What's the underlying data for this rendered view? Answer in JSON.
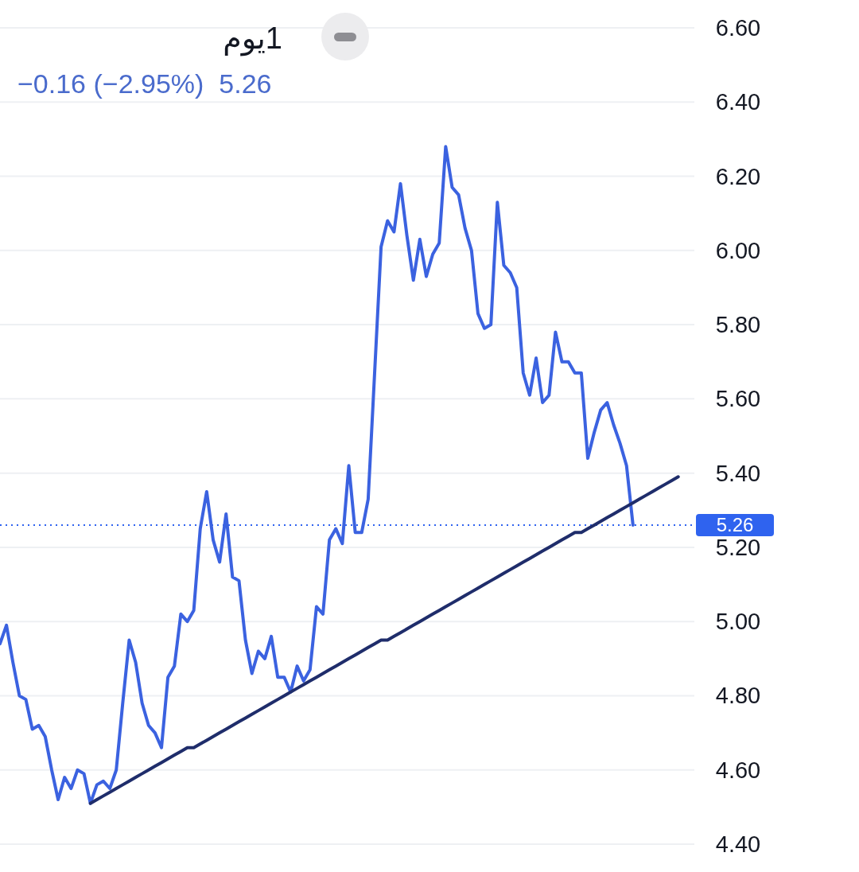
{
  "chart_data": {
    "type": "line",
    "title": "1يوم",
    "subtitle": "−0.16 (−2.95%)  5.26",
    "categories": [
      null,
      null,
      null,
      null,
      null,
      null,
      null,
      null,
      null,
      null,
      null,
      null,
      null,
      null,
      null,
      null,
      null,
      null,
      null,
      null,
      null,
      null,
      null,
      null,
      null,
      null,
      null,
      null,
      null,
      null,
      null,
      null,
      null,
      null,
      null,
      null,
      null,
      null,
      null,
      null,
      null,
      null,
      null,
      null,
      null,
      null,
      null,
      null,
      null,
      null,
      null,
      null,
      null,
      null,
      null,
      null,
      null,
      null,
      null,
      null,
      null,
      null,
      null,
      null,
      null,
      null,
      null,
      null,
      null,
      null,
      null,
      null,
      null,
      null,
      null,
      null,
      null,
      null,
      null,
      null,
      null,
      null,
      null,
      null,
      null,
      null,
      null,
      null,
      null,
      null,
      null,
      null,
      null,
      null,
      null,
      null,
      null,
      null,
      null,
      null,
      null,
      null,
      null,
      null,
      null,
      null,
      null,
      null
    ],
    "series": [
      {
        "color": "#3b62e0",
        "values": [
          4.94,
          4.99,
          4.89,
          4.8,
          4.79,
          4.71,
          4.72,
          4.69,
          4.6,
          4.52,
          4.58,
          4.55,
          4.6,
          4.59,
          4.51,
          4.56,
          4.57,
          4.55,
          4.6,
          4.78,
          4.95,
          4.89,
          4.78,
          4.72,
          4.7,
          4.66,
          4.85,
          4.88,
          5.02,
          5.0,
          5.03,
          5.25,
          5.35,
          5.22,
          5.16,
          5.29,
          5.12,
          5.11,
          4.95,
          4.86,
          4.92,
          4.9,
          4.96,
          4.85,
          4.85,
          4.81,
          4.88,
          4.84,
          4.87,
          5.04,
          5.02,
          5.22,
          5.25,
          5.21,
          5.42,
          5.24,
          5.24,
          5.33,
          5.67,
          6.01,
          6.08,
          6.05,
          6.18,
          6.04,
          5.92,
          6.03,
          5.93,
          5.99,
          6.02,
          6.28,
          6.17,
          6.15,
          6.06,
          6.0,
          5.83,
          5.79,
          5.8,
          6.13,
          5.96,
          5.94,
          5.9,
          5.67,
          5.61,
          5.71,
          5.59,
          5.61,
          5.78,
          5.7,
          5.7,
          5.67,
          5.67,
          5.44,
          5.51,
          5.57,
          5.59,
          5.53,
          5.48,
          5.42,
          5.26,
          null,
          null,
          null,
          null,
          null,
          null,
          null,
          null,
          null
        ]
      },
      {
        "color": "#1f2d6b",
        "values": [
          null,
          null,
          null,
          null,
          null,
          null,
          null,
          null,
          null,
          null,
          null,
          null,
          null,
          null,
          4.51,
          4.52,
          4.53,
          4.54,
          4.55,
          4.56,
          4.57,
          4.58,
          4.59,
          4.6,
          4.61,
          4.62,
          4.63,
          4.64,
          4.65,
          4.66,
          4.66,
          4.67,
          4.68,
          4.69,
          4.7,
          4.71,
          4.72,
          4.73,
          4.74,
          4.75,
          4.76,
          4.77,
          4.78,
          4.79,
          4.8,
          4.81,
          4.82,
          4.83,
          4.84,
          4.85,
          4.86,
          4.87,
          4.88,
          4.89,
          4.9,
          4.91,
          4.92,
          4.93,
          4.94,
          4.95,
          4.95,
          4.96,
          4.97,
          4.98,
          4.99,
          5.0,
          5.01,
          5.02,
          5.03,
          5.04,
          5.05,
          5.06,
          5.07,
          5.08,
          5.09,
          5.1,
          5.11,
          5.12,
          5.13,
          5.14,
          5.15,
          5.16,
          5.17,
          5.18,
          5.19,
          5.2,
          5.21,
          5.22,
          5.23,
          5.24,
          5.24,
          5.25,
          5.26,
          5.27,
          5.28,
          5.29,
          5.3,
          5.31,
          5.32,
          5.33,
          5.34,
          5.35,
          5.36,
          5.37,
          5.38,
          5.39,
          null,
          null
        ]
      }
    ],
    "ylim": [
      4.4,
      6.6
    ],
    "yticks": [
      {
        "value": 4.4,
        "label": "4.40"
      },
      {
        "value": 4.6,
        "label": "4.60"
      },
      {
        "value": 4.8,
        "label": "4.80"
      },
      {
        "value": 5.0,
        "label": "5.00"
      },
      {
        "value": 5.2,
        "label": "5.20"
      },
      {
        "value": 5.4,
        "label": "5.40"
      },
      {
        "value": 5.6,
        "label": "5.60"
      },
      {
        "value": 5.8,
        "label": "5.80"
      },
      {
        "value": 6.0,
        "label": "6.00"
      },
      {
        "value": 6.2,
        "label": "6.20"
      },
      {
        "value": 6.4,
        "label": "6.40"
      },
      {
        "value": 6.6,
        "label": "6.60"
      }
    ],
    "grid": "y",
    "tick_labels": "y",
    "ref_lines": [
      {
        "axis": "y",
        "value": 5.26,
        "label": "5.26",
        "color": "#2f63ef",
        "line_style": "dotted"
      }
    ]
  }
}
